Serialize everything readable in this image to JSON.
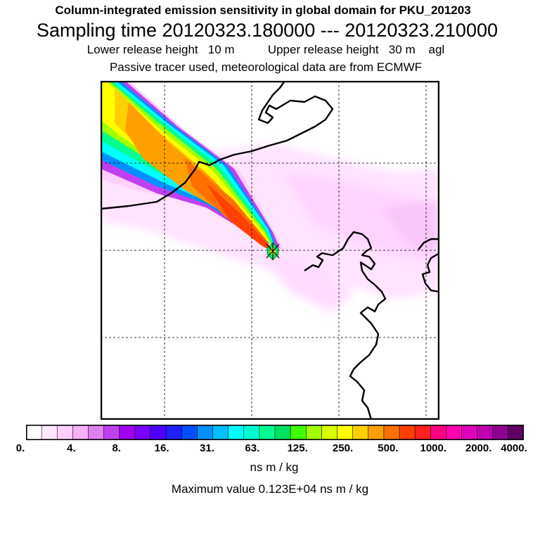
{
  "header": {
    "title": "Column-integrated emission sensitivity in global domain for PKU_201203",
    "sampling": "Sampling time   20120323.180000 --- 20120323.210000",
    "release": "Lower release height   10 m          Upper release height   30 m    agl",
    "tracer": "Passive tracer used, meteorological data are from ECMWF"
  },
  "legend": {
    "labels": [
      "0.",
      "4.",
      "8.",
      "16.",
      "31.",
      "63.",
      "125.",
      "250.",
      "500.",
      "1000.",
      "2000.",
      "4000."
    ],
    "unit": "ns m / kg",
    "max_value": "Maximum value  0.123E+04 ns m / kg",
    "colors": [
      "#ffffff",
      "#ffe8ff",
      "#ffd0ff",
      "#f5b0f8",
      "#e080f0",
      "#c040f0",
      "#a000f0",
      "#7a00ff",
      "#5000ff",
      "#2020ff",
      "#0050ff",
      "#0090ff",
      "#00c0ff",
      "#00ffff",
      "#00ffd0",
      "#00ff90",
      "#00e060",
      "#40ff00",
      "#a0ff00",
      "#d8ff00",
      "#ffff00",
      "#ffd000",
      "#ffa000",
      "#ff7000",
      "#ff4000",
      "#ff2020",
      "#ff0080",
      "#ff00b0",
      "#e000c0",
      "#c000b0",
      "#900090",
      "#600060"
    ]
  },
  "map": {
    "release_site": "PKU",
    "colors": {
      "plume_high": "#ff4000",
      "plume_mid": "#ffa000",
      "background": "#ffd0ff"
    }
  }
}
